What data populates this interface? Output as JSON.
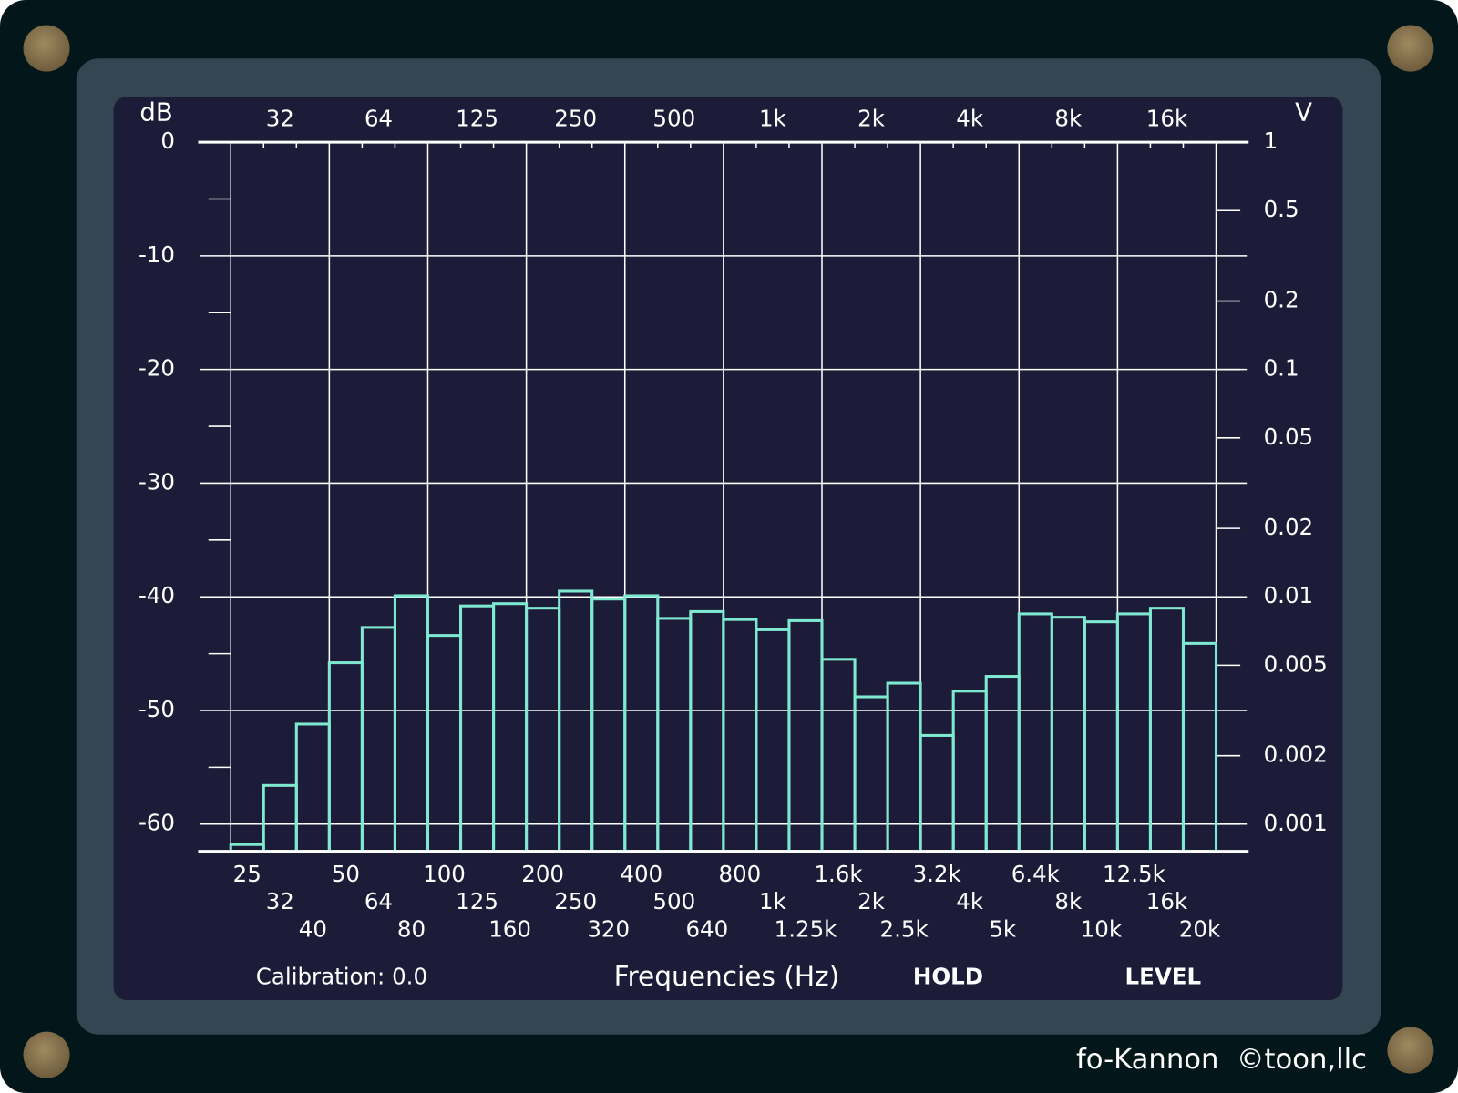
{
  "chart_data": {
    "type": "bar",
    "y_label": "dB",
    "y2_label": "V",
    "x_label": "Frequencies (Hz)",
    "categories": [
      "25",
      "32",
      "40",
      "50",
      "64",
      "80",
      "100",
      "125",
      "160",
      "200",
      "250",
      "320",
      "400",
      "500",
      "640",
      "800",
      "1k",
      "1.25k",
      "1.6k",
      "2k",
      "2.5k",
      "3.2k",
      "4k",
      "5k",
      "6.4k",
      "8k",
      "10k",
      "12.5k",
      "16k",
      "20k"
    ],
    "values": [
      -61.8,
      -56.6,
      -51.2,
      -45.8,
      -42.7,
      -39.9,
      -43.4,
      -40.8,
      -40.6,
      -41.0,
      -39.5,
      -40.2,
      -39.9,
      -41.9,
      -41.3,
      -42.0,
      -42.9,
      -42.1,
      -45.5,
      -48.8,
      -47.6,
      -52.2,
      -48.3,
      -47.0,
      -41.5,
      -41.8,
      -42.2,
      -41.5,
      -41.0,
      -44.1
    ],
    "color": "#7fe8d0",
    "ylim": [
      -62.4,
      0
    ],
    "yticks": [
      0,
      -10,
      -20,
      -30,
      -40,
      -50,
      -60
    ],
    "yminor_ticks": [
      -5,
      -15,
      -25,
      -35,
      -45,
      -55
    ],
    "y2lim": [
      0.000759,
      1
    ],
    "y2scale": "log",
    "y2ticks": [
      1,
      0.5,
      0.2,
      0.1,
      0.05,
      0.02,
      0.01,
      0.005,
      0.002,
      0.001
    ],
    "grid": true
  },
  "status": {
    "calibration": "Calibration: 0.0",
    "buttons": [
      "HOLD",
      "LEVEL"
    ],
    "footer": "fo-Kannon  ©toon,llc"
  }
}
